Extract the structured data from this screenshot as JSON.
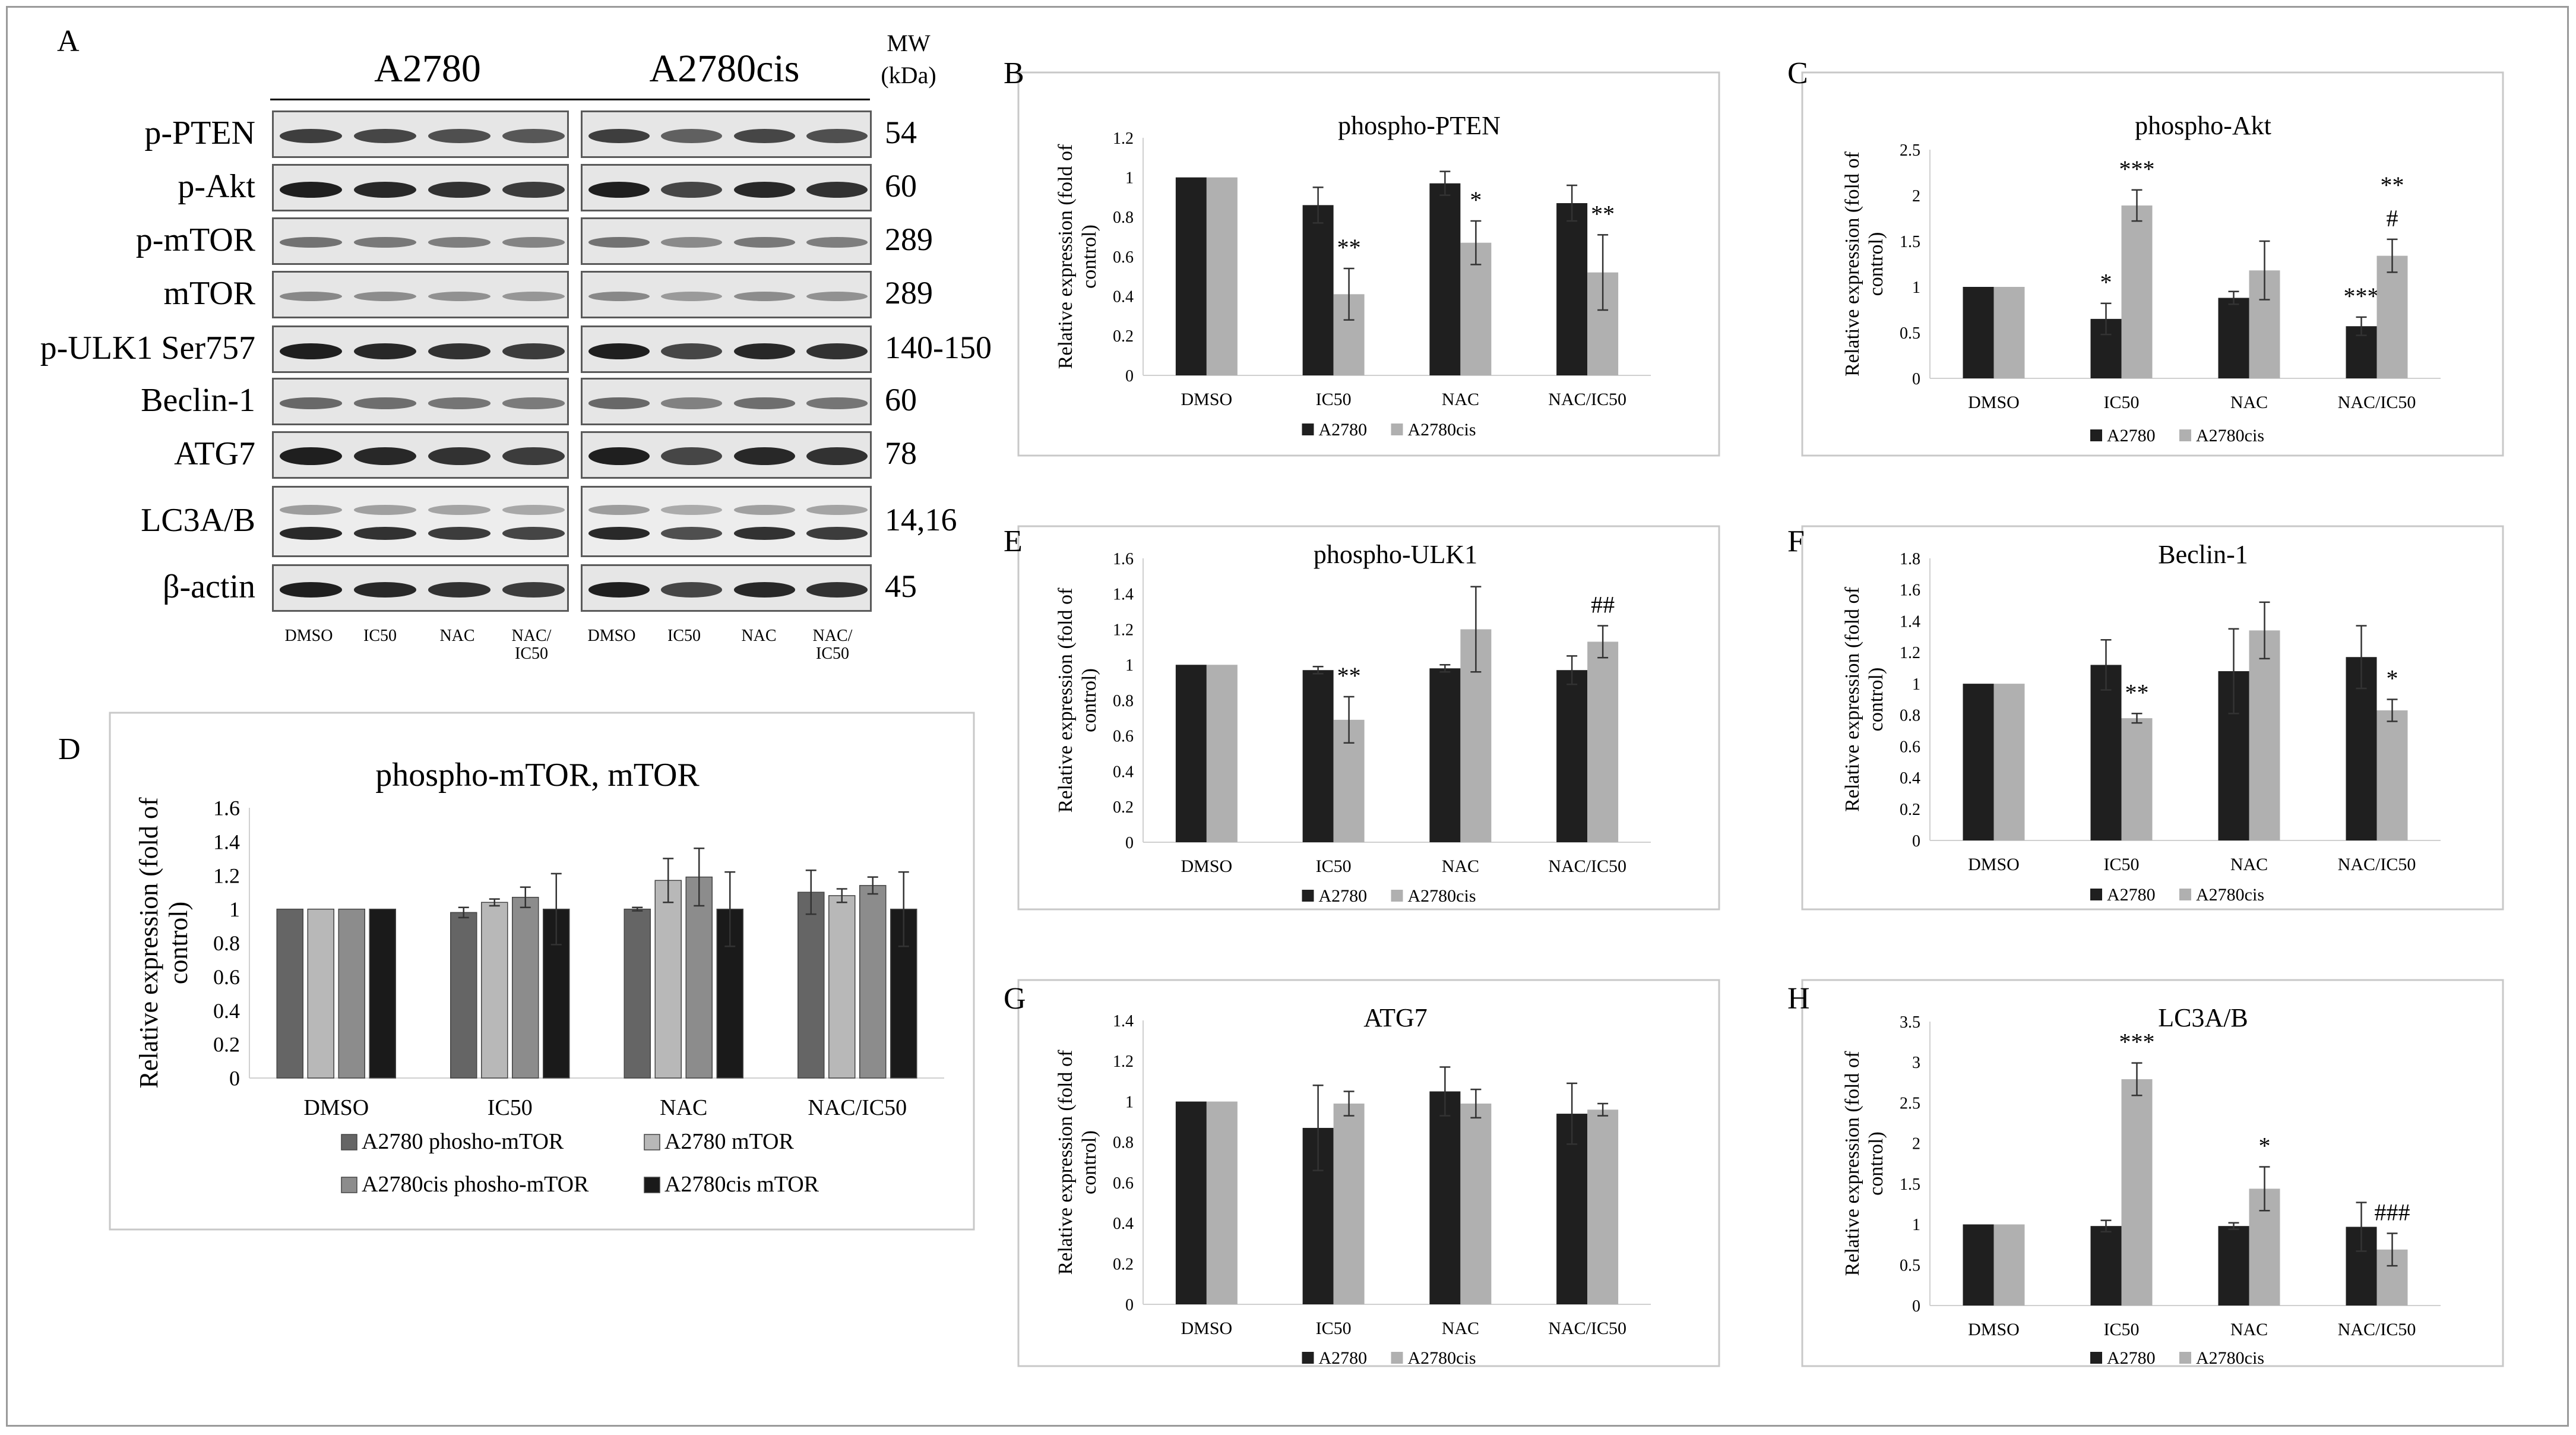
{
  "panels": {
    "A": {
      "letter": "A",
      "cell_lines": [
        "A2780",
        "A2780cis"
      ],
      "mw_header": [
        "MW",
        "(kDa)"
      ],
      "lanes": [
        "DMSO",
        "IC50",
        "NAC",
        "NAC/\nIC50"
      ],
      "proteins": [
        {
          "name": "p-PTEN",
          "mw": "54"
        },
        {
          "name": "p-Akt",
          "mw": "60"
        },
        {
          "name": "p-mTOR",
          "mw": "289"
        },
        {
          "name": "mTOR",
          "mw": "289"
        },
        {
          "name": "p-ULK1 Ser757",
          "mw": "140-150"
        },
        {
          "name": "Beclin-1",
          "mw": "60"
        },
        {
          "name": "ATG7",
          "mw": "78"
        },
        {
          "name": "LC3A/B",
          "mw": "14,16"
        },
        {
          "name": "β-actin",
          "mw": "45"
        }
      ]
    }
  },
  "colors": {
    "dark_bar": "#1f1f1f",
    "light_bar": "#b0b0b0",
    "mtor_series": [
      "#656565",
      "#b8b8b8",
      "#8c8c8c",
      "#1a1a1a"
    ]
  },
  "chart_data": [
    {
      "panel": "B",
      "type": "bar",
      "title": "phospho-PTEN",
      "ylabel": "Relative expression (fold of control)",
      "categories": [
        "DMSO",
        "IC50",
        "NAC",
        "NAC/IC50"
      ],
      "ylim": [
        0,
        1.2
      ],
      "yticks": [
        "0",
        "0.2",
        "0.4",
        "0.6",
        "0.8",
        "1",
        "1.2"
      ],
      "series": [
        {
          "name": "A2780",
          "values": [
            1.0,
            0.86,
            0.97,
            0.87
          ],
          "errors": [
            0.0,
            0.09,
            0.06,
            0.09
          ],
          "annotations": [
            "",
            "",
            "",
            ""
          ]
        },
        {
          "name": "A2780cis",
          "values": [
            1.0,
            0.41,
            0.67,
            0.52
          ],
          "errors": [
            0.0,
            0.13,
            0.11,
            0.19
          ],
          "annotations": [
            "",
            "**",
            "*",
            "**"
          ]
        }
      ]
    },
    {
      "panel": "C",
      "type": "bar",
      "title": "phospho-Akt",
      "ylabel": "Relative expression (fold of control)",
      "categories": [
        "DMSO",
        "IC50",
        "NAC",
        "NAC/IC50"
      ],
      "ylim": [
        0,
        2.5
      ],
      "yticks": [
        "0",
        "0.5",
        "1",
        "1.5",
        "2",
        "2.5"
      ],
      "series": [
        {
          "name": "A2780",
          "values": [
            1.0,
            0.65,
            0.88,
            0.57
          ],
          "errors": [
            0.0,
            0.17,
            0.07,
            0.1
          ],
          "annotations": [
            "",
            "*",
            "",
            "***"
          ]
        },
        {
          "name": "A2780cis",
          "values": [
            1.0,
            1.89,
            1.18,
            1.34
          ],
          "errors": [
            0.0,
            0.17,
            0.32,
            0.18
          ],
          "annotations": [
            "",
            "***",
            "",
            "**\n#"
          ]
        }
      ]
    },
    {
      "panel": "E",
      "type": "bar",
      "title": "phospho-ULK1",
      "ylabel": "Relative expression (fold of control)",
      "categories": [
        "DMSO",
        "IC50",
        "NAC",
        "NAC/IC50"
      ],
      "ylim": [
        0,
        1.6
      ],
      "yticks": [
        "0",
        "0.2",
        "0.4",
        "0.6",
        "0.8",
        "1",
        "1.2",
        "1.4",
        "1.6"
      ],
      "series": [
        {
          "name": "A2780",
          "values": [
            1.0,
            0.97,
            0.98,
            0.97
          ],
          "errors": [
            0.0,
            0.02,
            0.02,
            0.08
          ],
          "annotations": [
            "",
            "",
            "",
            ""
          ]
        },
        {
          "name": "A2780cis",
          "values": [
            1.0,
            0.69,
            1.2,
            1.13
          ],
          "errors": [
            0.0,
            0.13,
            0.24,
            0.09
          ],
          "annotations": [
            "",
            "**",
            "",
            "##"
          ]
        }
      ]
    },
    {
      "panel": "F",
      "type": "bar",
      "title": "Beclin-1",
      "ylabel": "Relative expression (fold of control)",
      "categories": [
        "DMSO",
        "IC50",
        "NAC",
        "NAC/IC50"
      ],
      "ylim": [
        0,
        1.8
      ],
      "yticks": [
        "0",
        "0.2",
        "0.4",
        "0.6",
        "0.8",
        "1",
        "1.2",
        "1.4",
        "1.6",
        "1.8"
      ],
      "series": [
        {
          "name": "A2780",
          "values": [
            1.0,
            1.12,
            1.08,
            1.17
          ],
          "errors": [
            0.0,
            0.16,
            0.27,
            0.2
          ],
          "annotations": [
            "",
            "",
            "",
            ""
          ]
        },
        {
          "name": "A2780cis",
          "values": [
            1.0,
            0.78,
            1.34,
            0.83
          ],
          "errors": [
            0.0,
            0.03,
            0.18,
            0.07
          ],
          "annotations": [
            "",
            "**",
            "",
            "*"
          ]
        }
      ]
    },
    {
      "panel": "G",
      "type": "bar",
      "title": "ATG7",
      "ylabel": "Relative expression (fold of control)",
      "categories": [
        "DMSO",
        "IC50",
        "NAC",
        "NAC/IC50"
      ],
      "ylim": [
        0,
        1.4
      ],
      "yticks": [
        "0",
        "0.2",
        "0.4",
        "0.6",
        "0.8",
        "1",
        "1.2",
        "1.4"
      ],
      "series": [
        {
          "name": "A2780",
          "values": [
            1.0,
            0.87,
            1.05,
            0.94
          ],
          "errors": [
            0.0,
            0.21,
            0.12,
            0.15
          ],
          "annotations": [
            "",
            "",
            "",
            ""
          ]
        },
        {
          "name": "A2780cis",
          "values": [
            1.0,
            0.99,
            0.99,
            0.96
          ],
          "errors": [
            0.0,
            0.06,
            0.07,
            0.03
          ],
          "annotations": [
            "",
            "",
            "",
            ""
          ]
        }
      ]
    },
    {
      "panel": "H",
      "type": "bar",
      "title": "LC3A/B",
      "ylabel": "Relative expression (fold of control)",
      "categories": [
        "DMSO",
        "IC50",
        "NAC",
        "NAC/IC50"
      ],
      "ylim": [
        0,
        3.5
      ],
      "yticks": [
        "0",
        "0.5",
        "1",
        "1.5",
        "2",
        "2.5",
        "3",
        "3.5"
      ],
      "series": [
        {
          "name": "A2780",
          "values": [
            1.0,
            0.98,
            0.98,
            0.97
          ],
          "errors": [
            0.0,
            0.07,
            0.04,
            0.3
          ],
          "annotations": [
            "",
            "",
            "",
            ""
          ]
        },
        {
          "name": "A2780cis",
          "values": [
            1.0,
            2.79,
            1.44,
            0.69
          ],
          "errors": [
            0.0,
            0.2,
            0.27,
            0.2
          ],
          "annotations": [
            "",
            "***",
            "*",
            "###"
          ]
        }
      ]
    },
    {
      "panel": "D",
      "type": "bar",
      "title": "phospho-mTOR,  mTOR",
      "ylabel": "Relative expression (fold of control)",
      "categories": [
        "DMSO",
        "IC50",
        "NAC",
        "NAC/IC50"
      ],
      "ylim": [
        0,
        1.6
      ],
      "yticks": [
        "0",
        "0.2",
        "0.4",
        "0.6",
        "0.8",
        "1",
        "1.2",
        "1.4",
        "1.6"
      ],
      "series": [
        {
          "name": "A2780 phosho-mTOR",
          "values": [
            1.0,
            0.98,
            1.0,
            1.1
          ],
          "errors": [
            0.0,
            0.03,
            0.01,
            0.13
          ],
          "annotations": [
            "",
            "",
            "",
            ""
          ]
        },
        {
          "name": "A2780 mTOR",
          "values": [
            1.0,
            1.04,
            1.17,
            1.08
          ],
          "errors": [
            0.0,
            0.02,
            0.13,
            0.04
          ],
          "annotations": [
            "",
            "",
            "",
            ""
          ]
        },
        {
          "name": "A2780cis phosho-mTOR",
          "values": [
            1.0,
            1.07,
            1.19,
            1.14
          ],
          "errors": [
            0.0,
            0.06,
            0.17,
            0.05
          ],
          "annotations": [
            "",
            "",
            "",
            ""
          ]
        },
        {
          "name": "A2780cis mTOR",
          "values": [
            1.0,
            1.0,
            1.0,
            1.0
          ],
          "errors": [
            0.0,
            0.21,
            0.22,
            0.22
          ],
          "annotations": [
            "",
            "",
            "",
            ""
          ]
        }
      ]
    }
  ]
}
